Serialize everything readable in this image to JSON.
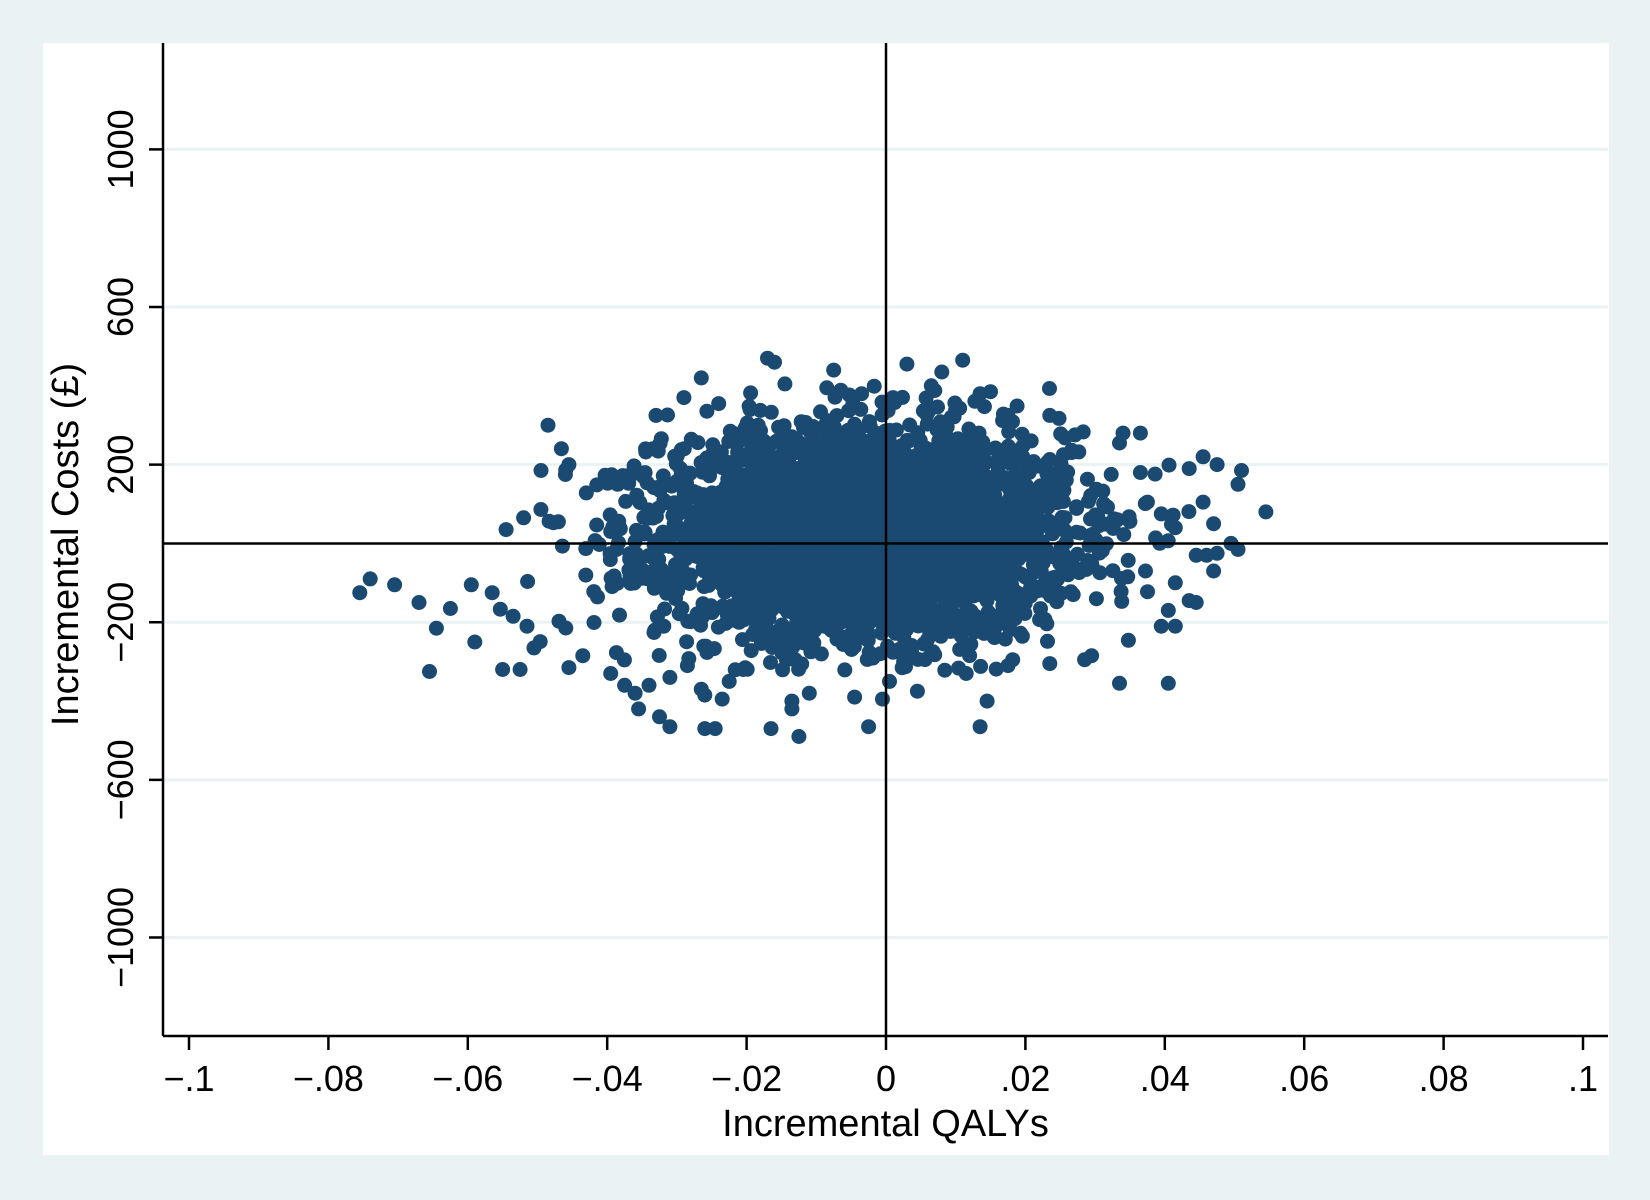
{
  "chart_data": {
    "type": "scatter",
    "title": "",
    "xlabel": "Incremental QALYs",
    "ylabel": "Incremental Costs (£)",
    "xlim": [
      -0.1,
      0.1
    ],
    "ylim": [
      -1250,
      1270
    ],
    "x_ticks": [
      {
        "value": -0.1,
        "label": "−.1"
      },
      {
        "value": -0.08,
        "label": "−.08"
      },
      {
        "value": -0.06,
        "label": "−.06"
      },
      {
        "value": -0.04,
        "label": "−.04"
      },
      {
        "value": -0.02,
        "label": "−.02"
      },
      {
        "value": 0,
        "label": "0"
      },
      {
        "value": 0.02,
        "label": ".02"
      },
      {
        "value": 0.04,
        "label": ".04"
      },
      {
        "value": 0.06,
        "label": ".06"
      },
      {
        "value": 0.08,
        "label": ".08"
      },
      {
        "value": 0.1,
        "label": ".1"
      }
    ],
    "y_ticks": [
      {
        "value": 1000,
        "label": "1000"
      },
      {
        "value": 600,
        "label": "600"
      },
      {
        "value": 200,
        "label": "200"
      },
      {
        "value": -200,
        "label": "−200"
      },
      {
        "value": -600,
        "label": "−600"
      },
      {
        "value": -1000,
        "label": "−1000"
      }
    ],
    "grid": "horizontal",
    "reference_lines": {
      "x": 0,
      "y": 0
    },
    "marker_color": "#1a4a72",
    "outlier_points": [
      [
        -0.0755,
        -125
      ],
      [
        -0.074,
        -90
      ],
      [
        -0.0705,
        -105
      ],
      [
        -0.067,
        -150
      ],
      [
        -0.0645,
        -215
      ],
      [
        -0.0625,
        -165
      ],
      [
        -0.0655,
        -325
      ],
      [
        -0.059,
        -250
      ],
      [
        -0.0595,
        -105
      ],
      [
        -0.0565,
        -125
      ],
      [
        -0.055,
        -320
      ],
      [
        -0.0525,
        -320
      ],
      [
        -0.0535,
        -185
      ],
      [
        -0.0505,
        -265
      ],
      [
        -0.0515,
        -210
      ],
      [
        -0.052,
        65
      ],
      [
        -0.0545,
        35
      ],
      [
        -0.0495,
        185
      ],
      [
        -0.0485,
        300
      ],
      [
        -0.047,
        55
      ],
      [
        -0.0455,
        200
      ],
      [
        -0.046,
        175
      ],
      [
        -0.0455,
        -315
      ],
      [
        -0.0435,
        -285
      ],
      [
        -0.0395,
        -330
      ],
      [
        -0.0375,
        -360
      ],
      [
        -0.036,
        -380
      ],
      [
        -0.0355,
        -420
      ],
      [
        -0.034,
        -360
      ],
      [
        -0.0325,
        -440
      ],
      [
        -0.031,
        -465
      ],
      [
        -0.031,
        -340
      ],
      [
        -0.0285,
        -310
      ],
      [
        -0.0265,
        -370
      ],
      [
        -0.026,
        -385
      ],
      [
        -0.0245,
        -470
      ],
      [
        -0.026,
        -470
      ],
      [
        -0.0235,
        -395
      ],
      [
        -0.0225,
        -350
      ],
      [
        -0.0205,
        -320
      ],
      [
        -0.0165,
        -470
      ],
      [
        -0.0125,
        -490
      ],
      [
        -0.0135,
        -420
      ],
      [
        -0.0135,
        -400
      ],
      [
        -0.011,
        -380
      ],
      [
        -0.0045,
        -390
      ],
      [
        -0.0025,
        -465
      ],
      [
        -0.0005,
        -395
      ],
      [
        0.0005,
        -350
      ],
      [
        0.0045,
        -375
      ],
      [
        0.0135,
        -465
      ],
      [
        0.0145,
        -400
      ],
      [
        0.0115,
        -330
      ],
      [
        0.0175,
        -310
      ],
      [
        0.0235,
        -305
      ],
      [
        0.0285,
        -295
      ],
      [
        0.0295,
        -285
      ],
      [
        0.0335,
        -355
      ],
      [
        0.0405,
        -355
      ],
      [
        0.0395,
        -210
      ],
      [
        0.0415,
        -210
      ],
      [
        0.0405,
        -170
      ],
      [
        0.0435,
        -145
      ],
      [
        0.0445,
        -150
      ],
      [
        0.0415,
        -100
      ],
      [
        0.047,
        -70
      ],
      [
        0.0475,
        -25
      ],
      [
        0.046,
        -30
      ],
      [
        0.0445,
        -30
      ],
      [
        0.0495,
        0
      ],
      [
        0.0505,
        -15
      ],
      [
        0.0545,
        80
      ],
      [
        0.0505,
        150
      ],
      [
        0.051,
        185
      ],
      [
        0.0475,
        200
      ],
      [
        0.0455,
        220
      ],
      [
        0.0435,
        190
      ],
      [
        0.047,
        50
      ],
      [
        0.0455,
        105
      ],
      [
        0.0415,
        40
      ],
      [
        0.0395,
        75
      ],
      [
        0.0375,
        105
      ],
      [
        0.0365,
        180
      ],
      [
        0.0365,
        280
      ],
      [
        0.034,
        280
      ],
      [
        0.0335,
        255
      ],
      [
        0.0235,
        325
      ],
      [
        0.0175,
        325
      ],
      [
        0.015,
        385
      ],
      [
        0.0135,
        380
      ],
      [
        0.011,
        465
      ],
      [
        0.008,
        435
      ],
      [
        0.0065,
        400
      ],
      [
        0.003,
        455
      ],
      [
        0.001,
        370
      ],
      [
        -0.0035,
        380
      ],
      [
        -0.0075,
        440
      ],
      [
        -0.0085,
        395
      ],
      [
        -0.0145,
        405
      ],
      [
        -0.016,
        460
      ],
      [
        -0.017,
        470
      ],
      [
        -0.0195,
        340
      ],
      [
        -0.024,
        355
      ],
      [
        -0.0265,
        420
      ],
      [
        -0.029,
        370
      ],
      [
        -0.033,
        325
      ],
      [
        -0.0345,
        240
      ],
      [
        -0.0385,
        150
      ]
    ],
    "core_distribution": {
      "count": 3800,
      "x_mean": -0.003,
      "x_sd": 0.0145,
      "y_mean": 25,
      "y_sd": 130
    }
  }
}
